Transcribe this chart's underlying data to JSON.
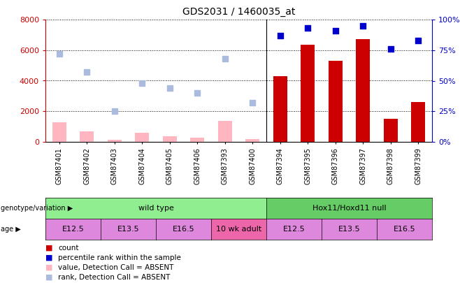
{
  "title": "GDS2031 / 1460035_at",
  "samples": [
    "GSM87401",
    "GSM87402",
    "GSM87403",
    "GSM87404",
    "GSM87405",
    "GSM87406",
    "GSM87393",
    "GSM87400",
    "GSM87394",
    "GSM87395",
    "GSM87396",
    "GSM87397",
    "GSM87398",
    "GSM87399"
  ],
  "count_values": [
    null,
    null,
    null,
    null,
    null,
    null,
    null,
    null,
    4300,
    6350,
    5300,
    6700,
    1500,
    2600
  ],
  "count_absent": [
    1300,
    700,
    150,
    600,
    350,
    280,
    1350,
    180,
    null,
    null,
    null,
    null,
    null,
    null
  ],
  "rank_values": [
    null,
    null,
    null,
    null,
    null,
    null,
    null,
    null,
    87,
    93,
    91,
    95,
    76,
    83
  ],
  "rank_absent": [
    72,
    57,
    25,
    48,
    44,
    40,
    68,
    32,
    null,
    null,
    null,
    null,
    null,
    null
  ],
  "ylim_left": [
    0,
    8000
  ],
  "ylim_right": [
    0,
    100
  ],
  "yticks_left": [
    0,
    2000,
    4000,
    6000,
    8000
  ],
  "yticks_right": [
    0,
    25,
    50,
    75,
    100
  ],
  "genotype_groups": [
    {
      "label": "wild type",
      "start": 0,
      "end": 8,
      "color": "#90EE90"
    },
    {
      "label": "Hox11/Hoxd11 null",
      "start": 8,
      "end": 14,
      "color": "#66CC66"
    }
  ],
  "age_groups": [
    {
      "label": "E12.5",
      "start": 0,
      "end": 2,
      "color": "#DD88DD"
    },
    {
      "label": "E13.5",
      "start": 2,
      "end": 4,
      "color": "#DD88DD"
    },
    {
      "label": "E16.5",
      "start": 4,
      "end": 6,
      "color": "#DD88DD"
    },
    {
      "label": "10 wk adult",
      "start": 6,
      "end": 8,
      "color": "#EE66AA"
    },
    {
      "label": "E12.5",
      "start": 8,
      "end": 10,
      "color": "#DD88DD"
    },
    {
      "label": "E13.5",
      "start": 10,
      "end": 12,
      "color": "#DD88DD"
    },
    {
      "label": "E16.5",
      "start": 12,
      "end": 14,
      "color": "#DD88DD"
    }
  ],
  "bar_color_present": "#CC0000",
  "bar_color_absent": "#FFB6C1",
  "dot_color_present": "#0000CC",
  "dot_color_absent": "#AABBDD",
  "left_axis_color": "#CC0000",
  "right_axis_color": "#0000CC",
  "bg_color": "#FFFFFF",
  "legend_items": [
    {
      "color": "#CC0000",
      "label": "count"
    },
    {
      "color": "#0000CC",
      "label": "percentile rank within the sample"
    },
    {
      "color": "#FFB6C1",
      "label": "value, Detection Call = ABSENT"
    },
    {
      "color": "#AABBDD",
      "label": "rank, Detection Call = ABSENT"
    }
  ]
}
